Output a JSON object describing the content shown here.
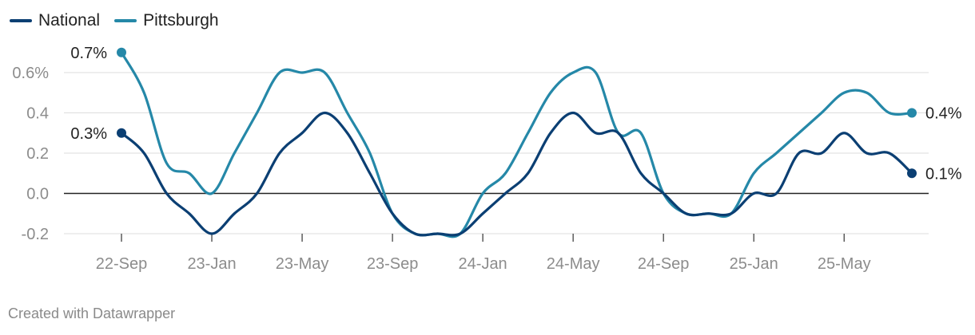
{
  "chart_data": {
    "type": "line",
    "title": "",
    "xlabel": "",
    "ylabel": "",
    "x_tick_labels": [
      "22-Sep",
      "23-Jan",
      "23-May",
      "23-Sep",
      "24-Jan",
      "24-May",
      "24-Sep",
      "25-Jan",
      "25-May"
    ],
    "y_ticks": [
      -0.2,
      0.0,
      0.2,
      0.4,
      0.6
    ],
    "y_tick_labels": [
      "-0.2",
      "0.0",
      "0.2",
      "0.4",
      "0.6%"
    ],
    "ylim": [
      -0.2,
      0.6
    ],
    "grid": true,
    "legend_position": "top-left",
    "x": [
      "2022-09",
      "2022-10",
      "2022-11",
      "2022-12",
      "2023-01",
      "2023-02",
      "2023-03",
      "2023-04",
      "2023-05",
      "2023-06",
      "2023-07",
      "2023-08",
      "2023-09",
      "2023-10",
      "2023-11",
      "2023-12",
      "2024-01",
      "2024-02",
      "2024-03",
      "2024-04",
      "2024-05",
      "2024-06",
      "2024-07",
      "2024-08",
      "2024-09",
      "2024-10",
      "2024-11",
      "2024-12",
      "2025-01",
      "2025-02",
      "2025-03",
      "2025-04",
      "2025-05",
      "2025-06",
      "2025-07",
      "2025-08"
    ],
    "series": [
      {
        "name": "National",
        "color": "#0b3f73",
        "values": [
          0.3,
          0.2,
          0.0,
          -0.1,
          -0.2,
          -0.1,
          0.0,
          0.2,
          0.3,
          0.4,
          0.3,
          0.1,
          -0.1,
          -0.2,
          -0.2,
          -0.2,
          -0.1,
          0.0,
          0.1,
          0.3,
          0.4,
          0.3,
          0.3,
          0.1,
          0.0,
          -0.1,
          -0.1,
          -0.1,
          0.0,
          0.0,
          0.2,
          0.2,
          0.3,
          0.2,
          0.2,
          0.1
        ],
        "end_labels": [
          "0.3%",
          "0.1%"
        ]
      },
      {
        "name": "Pittsburgh",
        "color": "#2588a8",
        "values": [
          0.7,
          0.5,
          0.15,
          0.1,
          0.0,
          0.2,
          0.4,
          0.6,
          0.6,
          0.6,
          0.4,
          0.2,
          -0.1,
          -0.2,
          -0.2,
          -0.2,
          0.0,
          0.1,
          0.3,
          0.5,
          0.6,
          0.6,
          0.3,
          0.3,
          0.0,
          -0.1,
          -0.1,
          -0.1,
          0.1,
          0.2,
          0.3,
          0.4,
          0.5,
          0.5,
          0.4,
          0.4
        ],
        "end_labels": [
          "0.7%",
          "0.4%"
        ]
      }
    ]
  },
  "legend": {
    "national": "National",
    "pittsburgh": "Pittsburgh"
  },
  "credit": "Created with Datawrapper"
}
